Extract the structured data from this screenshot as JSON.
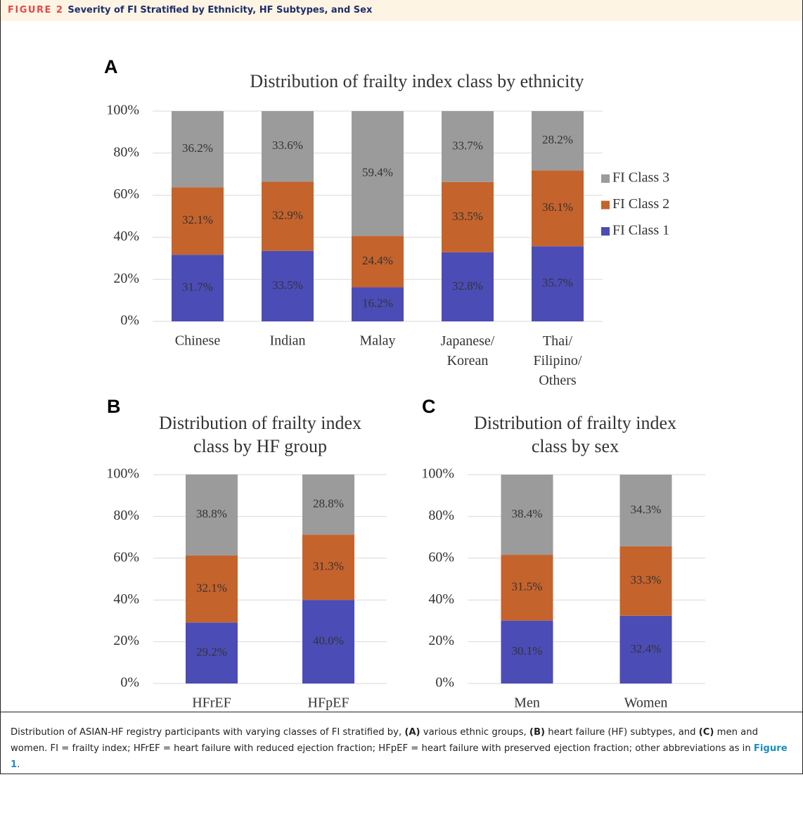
{
  "header": {
    "label": "FIGURE 2",
    "title": "Severity of FI Stratified by Ethnicity, HF Subtypes, and Sex"
  },
  "chart_data": [
    {
      "type": "bar",
      "stacked": true,
      "panel": "A",
      "title": "Distribution of frailty index class by ethnicity",
      "categories": [
        "Chinese",
        "Indian",
        "Malay",
        "Japanese/\nKorean",
        "Thai/\nFilipino/\nOthers"
      ],
      "series": [
        {
          "name": "FI Class 1",
          "color": "#4b4cb6",
          "values": [
            31.7,
            33.5,
            16.2,
            32.8,
            35.7
          ],
          "value_labels": [
            "31.7%",
            "33.5%",
            "16.2%",
            "32.8%",
            "35.7%"
          ]
        },
        {
          "name": "FI Class 2",
          "color": "#c5632c",
          "values": [
            32.1,
            32.9,
            24.4,
            33.5,
            36.1
          ],
          "value_labels": [
            "32.1%",
            "32.9%",
            "24.4%",
            "33.5%",
            "36.1%"
          ]
        },
        {
          "name": "FI Class 3",
          "color": "#9b9b9b",
          "values": [
            36.2,
            33.6,
            59.4,
            33.7,
            28.2
          ],
          "value_labels": [
            "36.2%",
            "33.6%",
            "59.4%",
            "33.7%",
            "28.2%"
          ]
        }
      ],
      "ylim": [
        0,
        100
      ],
      "yticks": [
        {
          "value": 0,
          "label": "0%"
        },
        {
          "value": 20,
          "label": "20%"
        },
        {
          "value": 40,
          "label": "40%"
        },
        {
          "value": 60,
          "label": "60%"
        },
        {
          "value": 80,
          "label": "80%"
        },
        {
          "value": 100,
          "label": "100%"
        }
      ],
      "grid": true,
      "legend": "right"
    },
    {
      "type": "bar",
      "stacked": true,
      "panel": "B",
      "title": "Distribution of frailty index\nclass by HF group",
      "categories": [
        "HFrEF",
        "HFpEF"
      ],
      "series": [
        {
          "name": "FI Class 1",
          "color": "#4b4cb6",
          "values": [
            29.2,
            40.0
          ],
          "value_labels": [
            "29.2%",
            "40.0%"
          ]
        },
        {
          "name": "FI Class 2",
          "color": "#c5632c",
          "values": [
            32.1,
            31.3
          ],
          "value_labels": [
            "32.1%",
            "31.3%"
          ]
        },
        {
          "name": "FI Class 3",
          "color": "#9b9b9b",
          "values": [
            38.8,
            28.8
          ],
          "value_labels": [
            "38.8%",
            "28.8%"
          ]
        }
      ],
      "ylim": [
        0,
        100
      ],
      "yticks": [
        {
          "value": 0,
          "label": "0%"
        },
        {
          "value": 20,
          "label": "20%"
        },
        {
          "value": 40,
          "label": "40%"
        },
        {
          "value": 60,
          "label": "60%"
        },
        {
          "value": 80,
          "label": "80%"
        },
        {
          "value": 100,
          "label": "100%"
        }
      ],
      "grid": true
    },
    {
      "type": "bar",
      "stacked": true,
      "panel": "C",
      "title": "Distribution of frailty index\nclass by sex",
      "categories": [
        "Men",
        "Women"
      ],
      "series": [
        {
          "name": "FI Class 1",
          "color": "#4b4cb6",
          "values": [
            30.1,
            32.4
          ],
          "value_labels": [
            "30.1%",
            "32.4%"
          ]
        },
        {
          "name": "FI Class 2",
          "color": "#c5632c",
          "values": [
            31.5,
            33.3
          ],
          "value_labels": [
            "31.5%",
            "33.3%"
          ]
        },
        {
          "name": "FI Class 3",
          "color": "#9b9b9b",
          "values": [
            38.4,
            34.3
          ],
          "value_labels": [
            "38.4%",
            "34.3%"
          ]
        }
      ],
      "ylim": [
        0,
        100
      ],
      "yticks": [
        {
          "value": 0,
          "label": "0%"
        },
        {
          "value": 20,
          "label": "20%"
        },
        {
          "value": 40,
          "label": "40%"
        },
        {
          "value": 60,
          "label": "60%"
        },
        {
          "value": 80,
          "label": "80%"
        },
        {
          "value": 100,
          "label": "100%"
        }
      ],
      "grid": true
    }
  ],
  "caption": [
    "Distribution of ASIAN-HF registry participants with varying classes of FI stratified by, ",
    "(A)",
    " various ethnic groups, ",
    "(B)",
    " heart failure (HF) subtypes, and ",
    "(C)",
    " men and women. FI = frailty index; HFrEF = heart failure with reduced ejection fraction; HFpEF = heart failure with preserved ejection fraction; other abbreviations as in ",
    "Figure 1",
    "."
  ]
}
